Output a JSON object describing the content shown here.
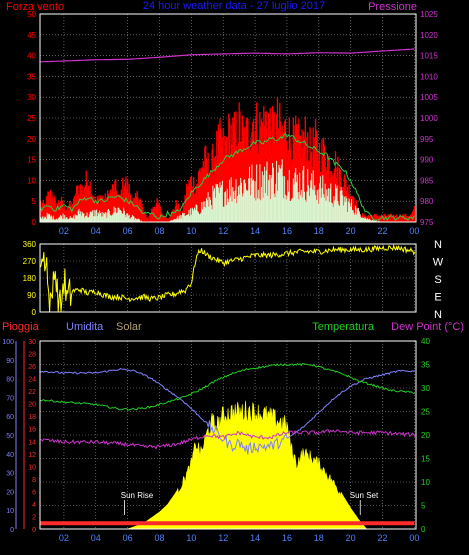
{
  "colors": {
    "background": "#000000",
    "frame": "#ffffff",
    "grid": "#9a9a9a",
    "wind": "#ff0000",
    "wind_avg": "#2ecc40",
    "wind_min": "#d8f5d0",
    "pressure": "#cc33cc",
    "direction": "#ffff00",
    "rain": "#ff2a2a",
    "humidity": "#8080ff",
    "solar": "#ffff00",
    "temperature": "#22cc22",
    "dewpoint": "#cc33cc",
    "title": "#1a1aff",
    "tick_x": "#5080ff"
  },
  "chart_data": [
    {
      "type": "line",
      "title": "24 hour weather data - 27 luglio 2017",
      "left_label": "Forza vento",
      "right_label": "Pressione",
      "x_ticks": [
        "02",
        "04",
        "06",
        "08",
        "10",
        "12",
        "14",
        "16",
        "18",
        "20",
        "22",
        "00"
      ],
      "x_range_hours": [
        0.5,
        24.1
      ],
      "y_left": {
        "ticks": [
          "0",
          "5",
          "10",
          "15",
          "20",
          "25",
          "30",
          "35",
          "40",
          "45",
          "50"
        ],
        "range": [
          0,
          50
        ]
      },
      "y_right": {
        "ticks": [
          "975",
          "980",
          "985",
          "990",
          "995",
          "1000",
          "1005",
          "1010",
          "1015",
          "1020",
          "1025"
        ],
        "range": [
          975,
          1025
        ]
      },
      "series": [
        {
          "name": "Forza vento (raffica)",
          "hours": [
            0.5,
            0.8,
            1.0,
            1.3,
            1.5,
            1.8,
            2.0,
            2.3,
            2.6,
            2.9,
            3.2,
            3.5,
            3.8,
            4.0,
            4.3,
            4.6,
            4.9,
            5.2,
            5.5,
            5.8,
            6.1,
            6.4,
            6.7,
            7.0,
            7.3,
            7.6,
            7.9,
            8.2,
            8.5,
            8.8,
            9.1,
            9.4,
            9.7,
            10.0,
            10.3,
            10.6,
            10.9,
            11.2,
            11.5,
            11.8,
            12.1,
            12.4,
            12.7,
            13.0,
            13.3,
            13.6,
            13.9,
            14.2,
            14.5,
            14.8,
            15.1,
            15.4,
            15.7,
            16.0,
            16.3,
            16.6,
            16.9,
            17.2,
            17.5,
            17.8,
            18.1,
            18.4,
            18.7,
            19.0,
            19.3,
            19.6,
            19.9,
            20.2,
            20.5,
            20.8,
            21.1,
            21.4,
            21.7,
            22.0,
            22.5,
            23.0,
            23.5,
            23.8,
            24.0
          ],
          "values": [
            6,
            5,
            8,
            9,
            5,
            7,
            4,
            5,
            6,
            11,
            10,
            14,
            9,
            6,
            8,
            7,
            9,
            11,
            7,
            13,
            10,
            6,
            9,
            3,
            1,
            5,
            6,
            2,
            1,
            3,
            6,
            2,
            10,
            13,
            11,
            17,
            19,
            16,
            22,
            25,
            23,
            28,
            27,
            30,
            26,
            28,
            32,
            29,
            30,
            33,
            28,
            31,
            27,
            29,
            25,
            26,
            24,
            27,
            22,
            25,
            21,
            22,
            18,
            19,
            15,
            13,
            10,
            8,
            3,
            2,
            2,
            2,
            2,
            2,
            2,
            2,
            2,
            2,
            4
          ]
        },
        {
          "name": "Forza vento (media)",
          "hours": [
            0.5,
            1.0,
            1.5,
            2.0,
            2.5,
            3.0,
            3.5,
            4.0,
            4.5,
            5.0,
            5.5,
            6.0,
            6.5,
            7.0,
            7.5,
            8.0,
            8.5,
            9.0,
            9.5,
            10.0,
            10.5,
            11.0,
            11.5,
            12.0,
            12.5,
            13.0,
            13.5,
            14.0,
            14.5,
            15.0,
            15.5,
            16.0,
            16.5,
            17.0,
            17.5,
            18.0,
            18.5,
            19.0,
            19.5,
            20.0,
            20.5,
            21.0,
            21.5,
            22.0,
            23.0,
            24.0
          ],
          "values": [
            3,
            4,
            3,
            4,
            3,
            5,
            6,
            5,
            5,
            6,
            6,
            5,
            4,
            2,
            2,
            1,
            2,
            2,
            4,
            7,
            9,
            11,
            13,
            15,
            16,
            17,
            18,
            19,
            19,
            20,
            20,
            21,
            20,
            19,
            18,
            17,
            16,
            14,
            13,
            10,
            6,
            2,
            1,
            1,
            1,
            1
          ]
        },
        {
          "name": "Forza vento (minimo)",
          "hours": [
            0.5,
            1.0,
            1.5,
            2.0,
            2.5,
            3.0,
            3.5,
            4.0,
            4.5,
            5.0,
            5.5,
            6.0,
            6.5,
            7.0,
            7.5,
            8.0,
            8.5,
            9.0,
            9.5,
            10.0,
            10.5,
            11.0,
            11.5,
            12.0,
            12.5,
            13.0,
            13.5,
            14.0,
            14.5,
            15.0,
            15.5,
            16.0,
            16.5,
            17.0,
            17.5,
            18.0,
            18.5,
            19.0,
            19.5,
            20.0,
            20.5,
            21.0,
            22.0,
            23.0,
            24.0
          ],
          "values": [
            1,
            2,
            1,
            2,
            1,
            3,
            2,
            3,
            2,
            3,
            4,
            2,
            1,
            0,
            0,
            0,
            0,
            1,
            2,
            3,
            4,
            6,
            8,
            9,
            10,
            11,
            12,
            12,
            13,
            13,
            14,
            13,
            12,
            12,
            11,
            10,
            9,
            8,
            7,
            5,
            3,
            1,
            0,
            0,
            0
          ]
        },
        {
          "name": "Pressione",
          "hours": [
            0.5,
            2.0,
            4.0,
            6.0,
            8.0,
            10.0,
            12.0,
            14.0,
            16.0,
            18.0,
            20.0,
            22.0,
            24.0
          ],
          "values": [
            1013.5,
            1013.7,
            1014.0,
            1014.1,
            1014.6,
            1015.2,
            1015.4,
            1015.6,
            1015.4,
            1015.7,
            1015.6,
            1016.1,
            1016.6
          ]
        }
      ]
    },
    {
      "type": "scatter",
      "right_ticks": [
        "N",
        "W",
        "S",
        "E",
        "N"
      ],
      "x_ticks": [
        "02",
        "04",
        "06",
        "08",
        "10",
        "12",
        "14",
        "16",
        "18",
        "20",
        "22",
        "00"
      ],
      "y": {
        "ticks": [
          "0",
          "90",
          "180",
          "270",
          "360"
        ],
        "range": [
          0,
          360
        ]
      },
      "series": [
        {
          "name": "Direzione vento",
          "hours": [
            0.5,
            0.7,
            0.9,
            1.0,
            1.2,
            1.4,
            1.6,
            1.8,
            2.0,
            2.2,
            2.5,
            3.0,
            3.5,
            4.0,
            4.5,
            5.0,
            5.5,
            6.0,
            6.5,
            7.0,
            7.5,
            8.0,
            8.5,
            9.0,
            9.3,
            9.6,
            9.8,
            10.0,
            10.3,
            10.6,
            11.0,
            11.5,
            12.0,
            12.5,
            13.0,
            14.0,
            15.0,
            16.0,
            17.0,
            18.0,
            19.0,
            20.0,
            21.0,
            22.0,
            23.0,
            24.0
          ],
          "values": [
            300,
            270,
            320,
            100,
            0,
            270,
            80,
            10,
            180,
            60,
            110,
            120,
            100,
            110,
            90,
            80,
            80,
            70,
            75,
            80,
            70,
            75,
            90,
            95,
            110,
            110,
            140,
            150,
            290,
            330,
            300,
            280,
            260,
            270,
            280,
            300,
            300,
            310,
            320,
            320,
            330,
            330,
            330,
            340,
            340,
            320
          ]
        }
      ]
    },
    {
      "type": "area",
      "labels": {
        "rain": "Pioggia",
        "humidity": "Umidita",
        "solar": "Solar",
        "temperature": "Temperatura",
        "dewpoint": "Dew Point (°C)"
      },
      "annotations": [
        "Sun Rise",
        "Sun Set"
      ],
      "x_ticks": [
        "02",
        "04",
        "06",
        "08",
        "10",
        "12",
        "14",
        "16",
        "18",
        "20",
        "22",
        "00"
      ],
      "y_humidity": {
        "ticks": [
          "0",
          "10",
          "20",
          "30",
          "40",
          "50",
          "60",
          "70",
          "80",
          "90",
          "100"
        ],
        "range": [
          0,
          100
        ]
      },
      "y_rain": {
        "ticks": [
          "0",
          "2",
          "4",
          "6",
          "8",
          "10",
          "12",
          "14",
          "16",
          "18",
          "20",
          "22",
          "24",
          "26",
          "28",
          "30"
        ],
        "range": [
          0,
          30
        ]
      },
      "y_temp": {
        "ticks": [
          "0",
          "5",
          "10",
          "15",
          "20",
          "25",
          "30",
          "35",
          "40"
        ],
        "range": [
          0,
          40
        ]
      },
      "series": [
        {
          "name": "Umidita",
          "hours": [
            0.5,
            2.0,
            4.0,
            5.5,
            6.5,
            7.5,
            8.5,
            9.5,
            10.5,
            11.5,
            12.0,
            12.5,
            13.0,
            13.5,
            14.0,
            15.0,
            16.0,
            17.0,
            18.0,
            19.0,
            20.0,
            21.0,
            22.0,
            23.0,
            24.0
          ],
          "values": [
            84,
            83,
            83,
            85,
            84,
            80,
            74,
            68,
            60,
            52,
            48,
            44,
            46,
            42,
            44,
            44,
            48,
            54,
            62,
            70,
            76,
            80,
            82,
            84,
            84
          ]
        },
        {
          "name": "Temperatura",
          "hours": [
            0.5,
            2.0,
            4.0,
            5.5,
            6.5,
            7.5,
            8.5,
            9.5,
            10.5,
            11.5,
            12.5,
            13.5,
            14.5,
            15.5,
            16.5,
            17.5,
            18.5,
            19.5,
            20.5,
            21.5,
            22.5,
            24.0
          ],
          "values": [
            27.5,
            27.0,
            26.5,
            25.5,
            25.5,
            26.0,
            27.0,
            28.0,
            29.5,
            31.5,
            33.0,
            34.0,
            34.5,
            35.0,
            35.0,
            35.0,
            34.0,
            33.0,
            31.5,
            30.5,
            29.5,
            29.0
          ]
        },
        {
          "name": "Dew Point",
          "hours": [
            0.5,
            2.0,
            4.0,
            6.0,
            7.0,
            8.0,
            9.0,
            10.0,
            11.0,
            12.0,
            13.0,
            14.0,
            15.0,
            16.0,
            17.0,
            18.0,
            19.0,
            20.0,
            22.0,
            24.0
          ],
          "values": [
            19.0,
            18.5,
            18.5,
            18.0,
            17.5,
            17.5,
            18.0,
            19.0,
            20.0,
            19.5,
            20.5,
            19.5,
            19.5,
            20.5,
            20.5,
            20.5,
            21.0,
            20.5,
            20.5,
            20.0
          ]
        },
        {
          "name": "Solar",
          "hours": [
            0.5,
            6.0,
            7.0,
            7.5,
            8.0,
            8.5,
            9.0,
            9.5,
            10.0,
            10.3,
            10.6,
            11.0,
            11.3,
            11.6,
            12.0,
            12.5,
            13.0,
            13.5,
            14.0,
            14.5,
            15.0,
            15.5,
            16.0,
            16.3,
            16.6,
            17.0,
            17.5,
            18.0,
            18.5,
            19.0,
            19.5,
            20.0,
            20.5,
            21.0,
            24.0
          ],
          "values": [
            0,
            0,
            3,
            6,
            9,
            13,
            19,
            28,
            38,
            50,
            44,
            56,
            62,
            60,
            66,
            68,
            68,
            69,
            68,
            67,
            65,
            63,
            60,
            46,
            38,
            44,
            42,
            38,
            32,
            26,
            18,
            11,
            5,
            0,
            0
          ]
        },
        {
          "name": "Pioggia",
          "hours": [
            0.5,
            24.0
          ],
          "values": [
            0.6,
            0.6
          ]
        }
      ]
    }
  ]
}
